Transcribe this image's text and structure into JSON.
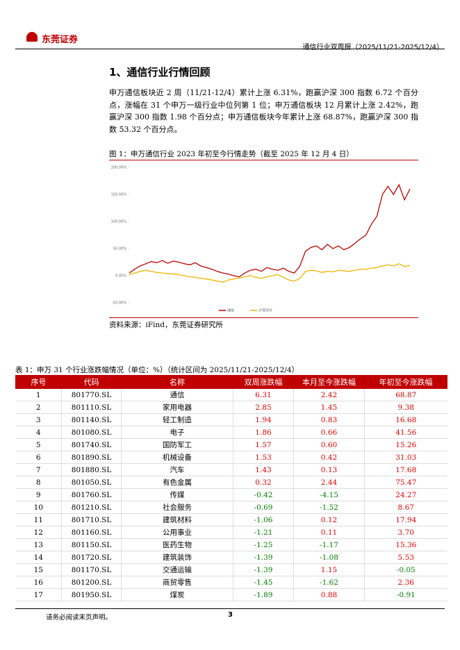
{
  "header": {
    "logo": "东莞证券",
    "report": "通信行业双周报（2025/11/21-2025/12/4）"
  },
  "section_title": "1、通信行业行情回顾",
  "paragraph": "申万通信板块近 2 周（11/21-12/4）累计上涨 6.31%，跑赢沪深 300 指数 6.72 个百分点，涨幅在 31 个申万一级行业中位列第 1 位；申万通信板块 12 月累计上涨 2.42%，跑赢沪深 300 指数 1.98 个百分点；申万通信板块今年累计上涨 68.87%，跑赢沪深 300 指数 53.32 个百分点。",
  "figure": {
    "caption": "图 1：申万通信行业 2023 年初至今行情走势（截至 2025 年 12 月 4 日）",
    "source": "资料来源：iFind，东莞证券研究所",
    "chart_data": {
      "type": "line",
      "ylim": [
        -50,
        200
      ],
      "yticks": [
        {
          "value": -50,
          "label": "-50.00%"
        },
        {
          "value": 0,
          "label": "0.00%"
        },
        {
          "value": 50,
          "label": "50.00%"
        },
        {
          "value": 100,
          "label": "100.00%"
        },
        {
          "value": 150,
          "label": "150.00%"
        },
        {
          "value": 200,
          "label": "200.00%"
        }
      ],
      "series": [
        {
          "name": "通信",
          "color": "#c00000",
          "values": [
            5,
            12,
            18,
            22,
            26,
            24,
            28,
            23,
            27,
            25,
            22,
            20,
            24,
            18,
            15,
            12,
            8,
            5,
            3,
            0,
            -2,
            5,
            10,
            12,
            8,
            15,
            12,
            10,
            14,
            8,
            5,
            18,
            45,
            52,
            55,
            48,
            58,
            50,
            55,
            48,
            52,
            60,
            68,
            75,
            95,
            110,
            150,
            165,
            150,
            168,
            140,
            160
          ]
        },
        {
          "name": "沪深300",
          "color": "#f0b400",
          "values": [
            2,
            5,
            8,
            10,
            8,
            6,
            5,
            4,
            3,
            2,
            0,
            -2,
            -3,
            -5,
            -6,
            -8,
            -10,
            -12,
            -8,
            -6,
            -4,
            -2,
            0,
            -3,
            -5,
            -2,
            0,
            2,
            -3,
            -8,
            -10,
            -5,
            8,
            10,
            9,
            6,
            8,
            7,
            10,
            9,
            8,
            10,
            12,
            12,
            14,
            15,
            18,
            20,
            18,
            22,
            17,
            19
          ]
        }
      ]
    }
  },
  "table": {
    "caption": "表 1：申万 31 个行业涨跌幅情况（单位：%）（统计区间为 2025/11/21-2025/12/4）",
    "columns": [
      "序号",
      "代码",
      "名称",
      "双周涨跌幅",
      "本月至今涨跌幅",
      "年初至今涨跌幅"
    ],
    "rows": [
      [
        "1",
        "801770.SL",
        "通信",
        "6.31",
        "2.42",
        "68.87"
      ],
      [
        "2",
        "801110.SL",
        "家用电器",
        "2.85",
        "1.45",
        "9.38"
      ],
      [
        "3",
        "801140.SL",
        "轻工制造",
        "1.94",
        "0.83",
        "16.68"
      ],
      [
        "4",
        "801080.SL",
        "电子",
        "1.86",
        "0.66",
        "41.56"
      ],
      [
        "5",
        "801740.SL",
        "国防军工",
        "1.57",
        "0.60",
        "15.26"
      ],
      [
        "6",
        "801890.SL",
        "机械设备",
        "1.53",
        "0.42",
        "31.03"
      ],
      [
        "7",
        "801880.SL",
        "汽车",
        "1.43",
        "0.13",
        "17.68"
      ],
      [
        "8",
        "801050.SL",
        "有色金属",
        "0.32",
        "2.44",
        "75.47"
      ],
      [
        "9",
        "801760.SL",
        "传媒",
        "-0.42",
        "-4.15",
        "24.27"
      ],
      [
        "10",
        "801210.SL",
        "社会服务",
        "-0.69",
        "-1.52",
        "8.67"
      ],
      [
        "11",
        "801710.SL",
        "建筑材料",
        "-1.06",
        "0.12",
        "17.94"
      ],
      [
        "12",
        "801160.SL",
        "公用事业",
        "-1.21",
        "0.11",
        "3.70"
      ],
      [
        "13",
        "801150.SL",
        "医药生物",
        "-1.25",
        "-1.17",
        "15.36"
      ],
      [
        "14",
        "801720.SL",
        "建筑装饰",
        "-1.39",
        "-1.08",
        "5.53"
      ],
      [
        "15",
        "801170.SL",
        "交通运输",
        "-1.39",
        "1.15",
        "-0.05"
      ],
      [
        "16",
        "801200.SL",
        "商贸零售",
        "-1.45",
        "-1.62",
        "2.36"
      ],
      [
        "17",
        "801950.SL",
        "煤炭",
        "-1.89",
        "0.88",
        "-0.91"
      ]
    ]
  },
  "footer": {
    "note": "请务必阅读末页声明。",
    "page": "3"
  }
}
